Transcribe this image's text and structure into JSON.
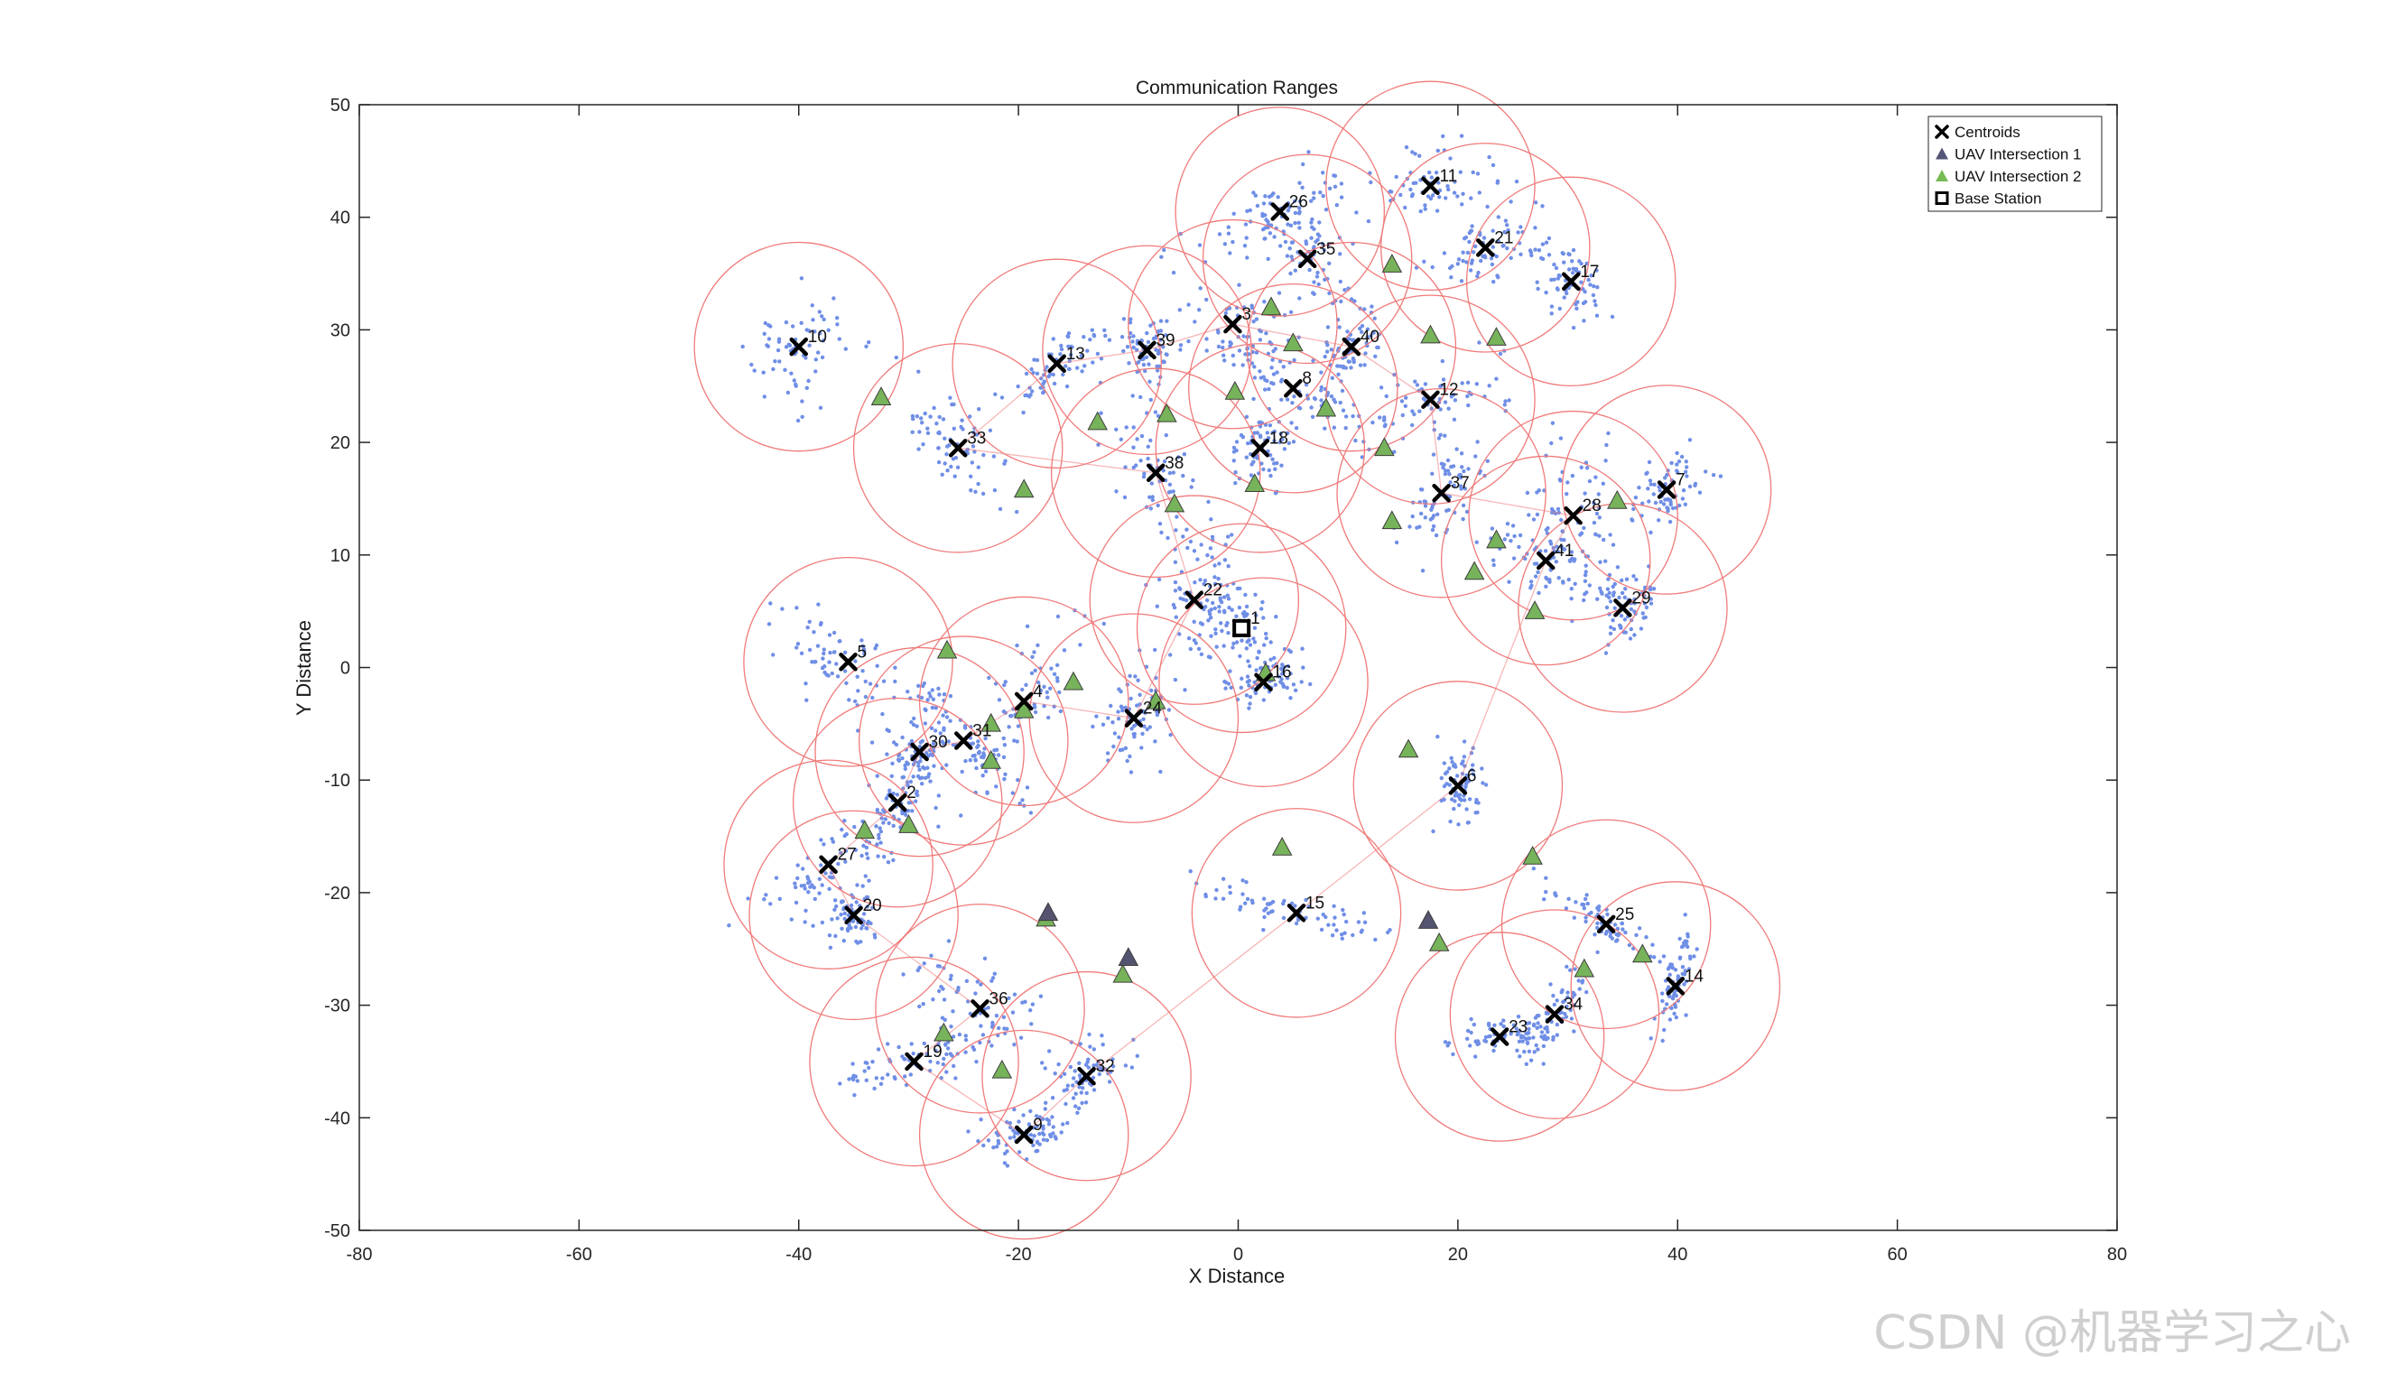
{
  "chart_data": {
    "type": "scatter",
    "title": "Communication Ranges",
    "xlabel": "X Distance",
    "ylabel": "Y Distance",
    "xlim": [
      -80,
      80
    ],
    "ylim": [
      -50,
      50
    ],
    "xticks": [
      -80,
      -60,
      -40,
      -20,
      0,
      20,
      40,
      60,
      80
    ],
    "yticks": [
      50,
      40,
      30,
      20,
      10,
      0,
      -10,
      -20,
      -30,
      -40,
      -50
    ],
    "grid": false,
    "legend_position": "top-right",
    "legend": [
      {
        "label": "Centroids",
        "marker": "x",
        "color": "#000000"
      },
      {
        "label": "UAV Intersection 1",
        "marker": "triangle",
        "color": "#555577"
      },
      {
        "label": "UAV Intersection 2",
        "marker": "triangle",
        "color": "#77bb55"
      },
      {
        "label": "Base Station",
        "marker": "square",
        "color": "#000000"
      }
    ],
    "comm_radius": 9.5,
    "colors": {
      "points": "#6f8ee6",
      "circles": "#f07a7a",
      "link": "#f07a7a",
      "uav2": "#77b35a",
      "uav1": "#545470"
    },
    "base_station": {
      "x": 0.3,
      "y": 3.5
    },
    "centroids": [
      {
        "id": "1",
        "x": 0.3,
        "y": 3.5
      },
      {
        "id": "2",
        "x": -31,
        "y": -12
      },
      {
        "id": "3",
        "x": -0.5,
        "y": 30.5
      },
      {
        "id": "4",
        "x": -19.5,
        "y": -3
      },
      {
        "id": "5",
        "x": -35.5,
        "y": 0.5
      },
      {
        "id": "6",
        "x": 20,
        "y": -10.5
      },
      {
        "id": "7",
        "x": 39,
        "y": 15.8
      },
      {
        "id": "8",
        "x": 5,
        "y": 24.8
      },
      {
        "id": "9",
        "x": -19.5,
        "y": -41.5
      },
      {
        "id": "10",
        "x": -40,
        "y": 28.5
      },
      {
        "id": "11",
        "x": 17.5,
        "y": 42.8
      },
      {
        "id": "12",
        "x": 17.5,
        "y": 23.8
      },
      {
        "id": "13",
        "x": -16.5,
        "y": 27
      },
      {
        "id": "14",
        "x": 39.8,
        "y": -28.3
      },
      {
        "id": "15",
        "x": 5.3,
        "y": -21.8
      },
      {
        "id": "16",
        "x": 2.3,
        "y": -1.3
      },
      {
        "id": "17",
        "x": 30.3,
        "y": 34.3
      },
      {
        "id": "18",
        "x": 2,
        "y": 19.5
      },
      {
        "id": "19",
        "x": -29.5,
        "y": -35
      },
      {
        "id": "20",
        "x": -35,
        "y": -22
      },
      {
        "id": "21",
        "x": 22.5,
        "y": 37.3
      },
      {
        "id": "22",
        "x": -4,
        "y": 6
      },
      {
        "id": "23",
        "x": 23.8,
        "y": -32.8
      },
      {
        "id": "24",
        "x": -9.5,
        "y": -4.5
      },
      {
        "id": "25",
        "x": 33.5,
        "y": -22.8
      },
      {
        "id": "26",
        "x": 3.8,
        "y": 40.5
      },
      {
        "id": "27",
        "x": -37.3,
        "y": -17.5
      },
      {
        "id": "28",
        "x": 30.5,
        "y": 13.5
      },
      {
        "id": "29",
        "x": 35,
        "y": 5.3
      },
      {
        "id": "30",
        "x": -29,
        "y": -7.5
      },
      {
        "id": "31",
        "x": -25,
        "y": -6.5
      },
      {
        "id": "32",
        "x": -13.8,
        "y": -36.3
      },
      {
        "id": "33",
        "x": -25.5,
        "y": 19.5
      },
      {
        "id": "34",
        "x": 28.8,
        "y": -30.8
      },
      {
        "id": "35",
        "x": 6.3,
        "y": 36.3
      },
      {
        "id": "36",
        "x": -23.5,
        "y": -30.3
      },
      {
        "id": "37",
        "x": 18.5,
        "y": 15.5
      },
      {
        "id": "38",
        "x": -7.5,
        "y": 17.3
      },
      {
        "id": "39",
        "x": -8.3,
        "y": 28.2
      },
      {
        "id": "40",
        "x": 10.3,
        "y": 28.5
      },
      {
        "id": "41",
        "x": 28,
        "y": 9.5
      }
    ],
    "uav_intersection_2": [
      [
        -32.5,
        24
      ],
      [
        -19.5,
        15.8
      ],
      [
        -12.8,
        21.8
      ],
      [
        -6.5,
        22.5
      ],
      [
        -5.8,
        14.5
      ],
      [
        -0.3,
        24.5
      ],
      [
        3,
        32
      ],
      [
        5,
        28.8
      ],
      [
        8,
        23
      ],
      [
        14,
        35.8
      ],
      [
        17.5,
        29.5
      ],
      [
        23.5,
        29.3
      ],
      [
        1.5,
        16.3
      ],
      [
        13.3,
        19.5
      ],
      [
        14,
        13
      ],
      [
        21.5,
        8.5
      ],
      [
        23.5,
        11.3
      ],
      [
        27,
        5
      ],
      [
        34.5,
        14.8
      ],
      [
        -26.5,
        1.5
      ],
      [
        -15,
        -1.3
      ],
      [
        -19.5,
        -3.8
      ],
      [
        -22.5,
        -5
      ],
      [
        -7.5,
        -3
      ],
      [
        2.5,
        -0.5
      ],
      [
        -22.5,
        -8.3
      ],
      [
        -34,
        -14.5
      ],
      [
        -30,
        -14
      ],
      [
        15.5,
        -7.3
      ],
      [
        4,
        -16
      ],
      [
        26.8,
        -16.8
      ],
      [
        -17.5,
        -22.3
      ],
      [
        -10.5,
        -27.3
      ],
      [
        18.3,
        -24.5
      ],
      [
        31.5,
        -26.8
      ],
      [
        36.8,
        -25.5
      ],
      [
        -26.8,
        -32.5
      ],
      [
        -21.5,
        -35.8
      ]
    ],
    "uav_intersection_1": [
      [
        -17.3,
        -21.8
      ],
      [
        -10,
        -25.8
      ],
      [
        17.3,
        -22.5
      ]
    ]
  }
}
